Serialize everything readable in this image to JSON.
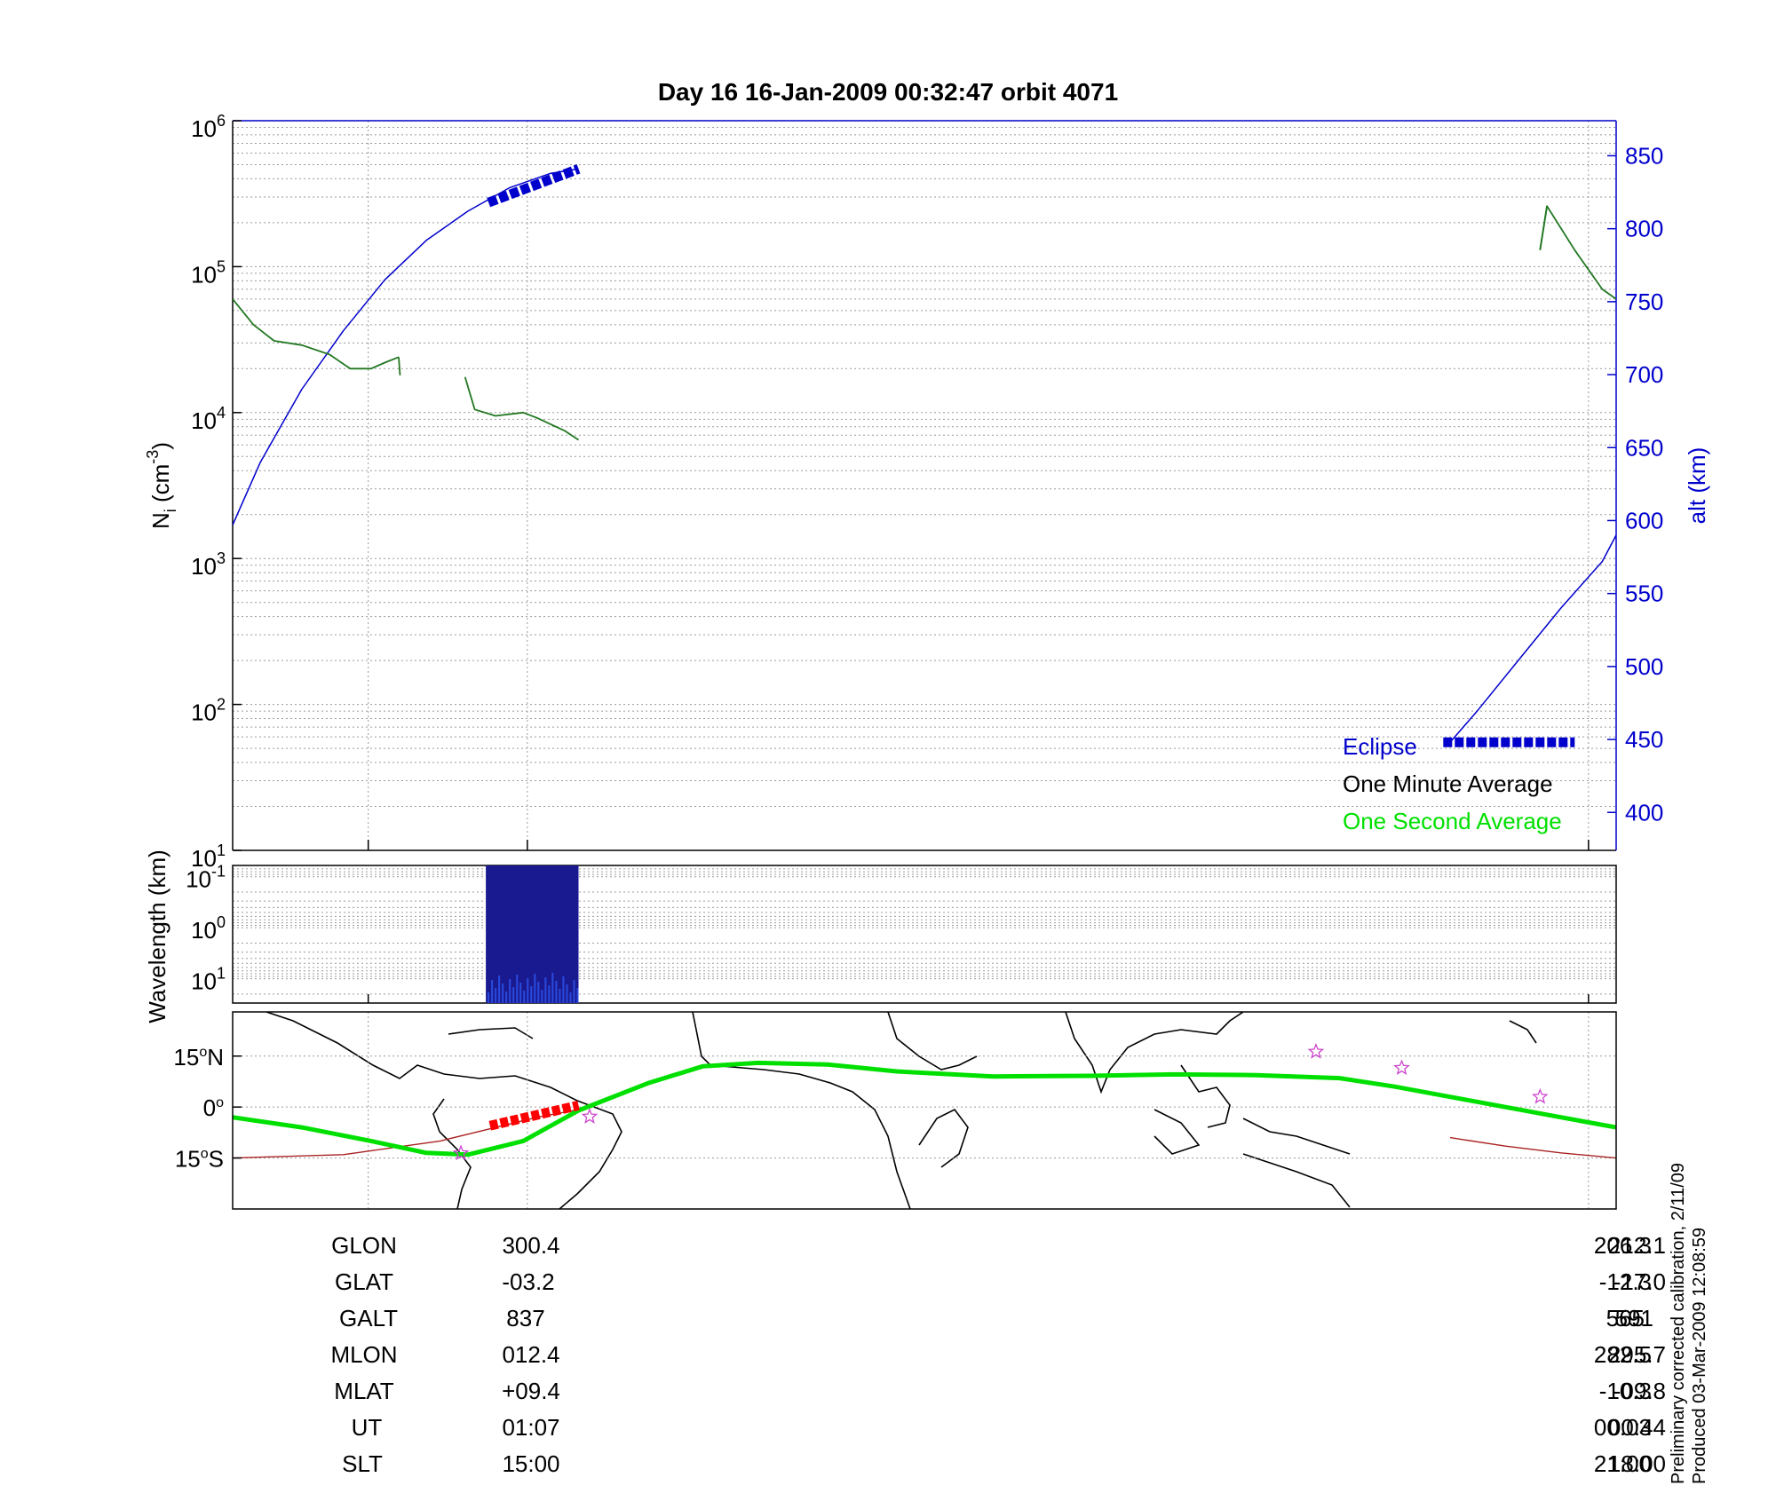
{
  "header": {
    "title": "Day 16  16-Jan-2009 00:32:47   orbit 4071"
  },
  "colors": {
    "altitude": "#0000cc",
    "one_second": "#00e000",
    "one_minute": "#000000",
    "density": "#227722",
    "track": "#00e000",
    "track_eclipse": "#ff0000",
    "sun_track": "#aa2222",
    "stars": "#cc44cc",
    "spectrogram": "#1a1a90"
  },
  "chart_data": [
    {
      "type": "line",
      "name": "density-panel",
      "ylabel_left": "Ni (cm-3)",
      "ylabel_left_base": "N",
      "ylabel_left_sub": "i",
      "ylabel_left_unit": "(cm",
      "ylabel_left_unit_sup": "-3",
      "ylabel_left_close": ")",
      "ylabel_right": "alt (km)",
      "yscale_left": "log",
      "ylim_left": [
        10,
        1000000
      ],
      "yticks_left": [
        {
          "base": "10",
          "exp": "6"
        },
        {
          "base": "10",
          "exp": "5"
        },
        {
          "base": "10",
          "exp": "4"
        },
        {
          "base": "10",
          "exp": "3"
        },
        {
          "base": "10",
          "exp": "2"
        },
        {
          "base": "10",
          "exp": "1"
        }
      ],
      "ylim_right": [
        374,
        874
      ],
      "yticks_right": [
        "850",
        "800",
        "750",
        "700",
        "650",
        "600",
        "550",
        "500",
        "450",
        "400"
      ],
      "xlim": [
        0,
        1
      ],
      "grid": true,
      "legend_position": "bottom-right",
      "legend": [
        {
          "label": "Eclipse",
          "color": "#0000cc"
        },
        {
          "label": "One Minute Average",
          "color": "#000000"
        },
        {
          "label": "One Second Average",
          "color": "#00e000"
        }
      ],
      "altitude_series": [
        {
          "x": [
            0.0,
            0.02,
            0.05,
            0.08,
            0.11,
            0.14,
            0.17,
            0.2,
            0.23,
            0.25
          ],
          "y": [
            597,
            640,
            690,
            730,
            765,
            792,
            812,
            828,
            838,
            841
          ]
        },
        {
          "x": [
            0.88,
            0.9,
            0.93,
            0.96,
            0.99,
            1.0
          ],
          "y": [
            448,
            470,
            505,
            540,
            572,
            590
          ]
        }
      ],
      "eclipse_segments": [
        {
          "x": [
            0.185,
            0.25
          ],
          "y": [
            818,
            841
          ]
        },
        {
          "x": [
            0.875,
            0.97
          ],
          "y": [
            448,
            448
          ]
        }
      ],
      "density_series": [
        {
          "x": [
            0.0,
            0.015,
            0.03,
            0.05,
            0.07,
            0.085,
            0.1,
            0.11,
            0.12
          ],
          "y": [
            60000,
            40000,
            31000,
            29000,
            25000,
            20000,
            20000,
            22000,
            24000
          ]
        },
        {
          "x": [
            0.12,
            0.121
          ],
          "y": [
            24000,
            18000
          ]
        },
        {
          "x": [
            0.168,
            0.175,
            0.19,
            0.21,
            0.22,
            0.24,
            0.25
          ],
          "y": [
            17500,
            10500,
            9500,
            10000,
            9200,
            7500,
            6500
          ]
        },
        {
          "x": [
            0.945,
            0.95,
            0.97,
            0.99,
            1.0
          ],
          "y": [
            130000,
            260000,
            130000,
            70000,
            60000
          ]
        },
        {
          "x": [
            0.945,
            0.95
          ],
          "y": [
            130000,
            260000
          ]
        }
      ]
    },
    {
      "type": "heatmap",
      "name": "wavelength-panel",
      "ylabel": "Wavelength (km)",
      "yscale": "log",
      "yticks": [
        {
          "base": "10",
          "exp": "-1"
        },
        {
          "base": "10",
          "exp": "0"
        },
        {
          "base": "10",
          "exp": "1"
        }
      ],
      "ylim": [
        0.06,
        30
      ],
      "xlim": [
        0,
        1
      ],
      "active_x_range": [
        0.183,
        0.25
      ]
    },
    {
      "type": "line",
      "name": "map-panel",
      "yticks": [
        {
          "deg": "15",
          "hemi": "N"
        },
        {
          "deg": "0",
          "hemi": ""
        },
        {
          "deg": "15",
          "hemi": "S"
        }
      ],
      "ylim": [
        -30,
        28
      ],
      "xlim": [
        0,
        1
      ],
      "track": {
        "x": [
          0.0,
          0.05,
          0.1,
          0.14,
          0.17,
          0.21,
          0.25,
          0.3,
          0.34,
          0.38,
          0.43,
          0.48,
          0.55,
          0.62,
          0.68,
          0.74,
          0.8,
          0.84,
          0.88,
          0.92,
          0.96,
          1.0
        ],
        "y": [
          -3,
          -6,
          -10,
          -13.5,
          -14,
          -10,
          -1,
          7,
          12,
          13,
          12.5,
          10.5,
          9,
          9.2,
          9.6,
          9.4,
          8.5,
          6,
          3,
          0,
          -3,
          -6
        ]
      },
      "track_eclipse": {
        "x": [
          0.186,
          0.25
        ],
        "y": [
          -5.5,
          0.5
        ]
      },
      "sun_track": [
        {
          "x": [
            0.0,
            0.08,
            0.15,
            0.22,
            0.26
          ],
          "y": [
            -15,
            -14,
            -10,
            -3,
            0
          ]
        },
        {
          "x": [
            0.88,
            0.92,
            0.96,
            1.0
          ],
          "y": [
            -9,
            -11.5,
            -13.5,
            -15
          ]
        }
      ],
      "stars": {
        "x": [
          0.165,
          0.258,
          0.783,
          0.845,
          0.945
        ],
        "y": [
          -13.6,
          -2.8,
          16.3,
          11.5,
          3
        ]
      }
    }
  ],
  "table": {
    "headers": [
      "GLON",
      "GLAT",
      "GALT",
      "MLON",
      "MLAT",
      "UT",
      "SLT"
    ],
    "left_values": [
      "300.4",
      "-03.2",
      "837",
      "012.4",
      "+09.4",
      "01:07",
      "15:00"
    ],
    "right_values": [
      "212.1",
      "-17.0",
      "591",
      "295.7",
      "-09.8",
      "00:44",
      "18:00"
    ],
    "right_values_overlap": [
      "206.3",
      "-12.3",
      "565",
      "282.5",
      "-10.3",
      "00:03",
      "21:00"
    ]
  },
  "footer": {
    "line1": "Preliminary corrected calibration, 2/11/09",
    "line2": "Produced 03-Mar-2009 12:08:59"
  }
}
